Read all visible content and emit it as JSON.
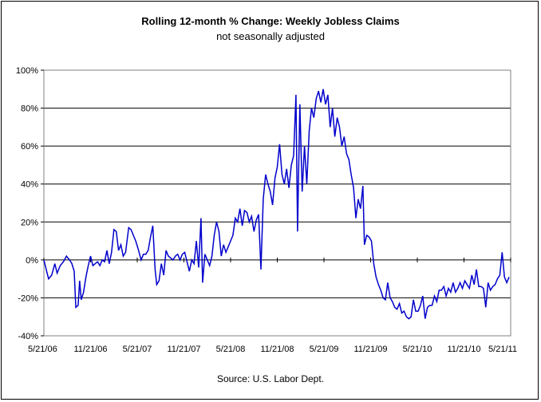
{
  "chart_data": {
    "type": "line",
    "title": "Rolling 12-month %  Change: Weekly Jobless Claims",
    "subtitle": "not seasonally adjusted",
    "source": "Source: U.S. Labor Dept.",
    "xlabel": "",
    "ylabel": "",
    "ylim": [
      -40,
      100
    ],
    "yticks": [
      -40,
      -20,
      0,
      20,
      40,
      60,
      80,
      100
    ],
    "ytick_labels": [
      "-40%",
      "-20%",
      "0%",
      "20%",
      "40%",
      "60%",
      "80%",
      "100%"
    ],
    "xticks": [
      "5/21/06",
      "11/21/06",
      "5/21/07",
      "11/21/07",
      "5/21/08",
      "11/21/08",
      "5/21/09",
      "11/21/09",
      "5/21/10",
      "11/21/10",
      "5/21/11"
    ],
    "grid": "horizontal",
    "line_color": "#0000CC",
    "series": [
      {
        "values": [
          [
            0,
            0
          ],
          [
            0.3,
            -5
          ],
          [
            0.6,
            -10
          ],
          [
            1.0,
            -8
          ],
          [
            1.4,
            -2
          ],
          [
            1.7,
            -7
          ],
          [
            2.1,
            -3
          ],
          [
            2.5,
            -1
          ],
          [
            2.9,
            2
          ],
          [
            3.3,
            0
          ],
          [
            3.6,
            -2
          ],
          [
            3.9,
            -6
          ],
          [
            4.1,
            -25
          ],
          [
            4.4,
            -24
          ],
          [
            4.6,
            -11
          ],
          [
            4.8,
            -21
          ],
          [
            5.1,
            -17
          ],
          [
            5.4,
            -9
          ],
          [
            5.7,
            -3
          ],
          [
            6.0,
            2
          ],
          [
            6.3,
            -3
          ],
          [
            6.6,
            -2
          ],
          [
            6.9,
            -1
          ],
          [
            7.2,
            -3
          ],
          [
            7.5,
            0
          ],
          [
            7.8,
            -1
          ],
          [
            8.1,
            5
          ],
          [
            8.4,
            -2
          ],
          [
            8.7,
            4
          ],
          [
            9.0,
            16
          ],
          [
            9.3,
            15
          ],
          [
            9.6,
            5
          ],
          [
            9.9,
            8
          ],
          [
            10.2,
            2
          ],
          [
            10.5,
            4
          ],
          [
            10.9,
            17
          ],
          [
            11.2,
            16
          ],
          [
            11.5,
            13
          ],
          [
            11.8,
            10
          ],
          [
            12.1,
            6
          ],
          [
            12.5,
            0
          ],
          [
            12.8,
            3
          ],
          [
            13.1,
            3
          ],
          [
            13.4,
            5
          ],
          [
            13.7,
            12
          ],
          [
            14.0,
            18
          ],
          [
            14.3,
            -5
          ],
          [
            14.5,
            -13
          ],
          [
            14.8,
            -11
          ],
          [
            15.1,
            -2
          ],
          [
            15.4,
            -8
          ],
          [
            15.7,
            5
          ],
          [
            16.0,
            2
          ],
          [
            16.3,
            1
          ],
          [
            16.6,
            0
          ],
          [
            16.9,
            2
          ],
          [
            17.2,
            3
          ],
          [
            17.5,
            0
          ],
          [
            17.8,
            3
          ],
          [
            18.1,
            4
          ],
          [
            18.4,
            -1
          ],
          [
            18.7,
            -6
          ],
          [
            19.0,
            0
          ],
          [
            19.3,
            -2
          ],
          [
            19.6,
            10
          ],
          [
            19.9,
            -4
          ],
          [
            20.2,
            22
          ],
          [
            20.4,
            -12
          ],
          [
            20.7,
            3
          ],
          [
            21.0,
            0
          ],
          [
            21.3,
            -3
          ],
          [
            21.6,
            2
          ],
          [
            21.9,
            13
          ],
          [
            22.2,
            20
          ],
          [
            22.5,
            15
          ],
          [
            22.8,
            2
          ],
          [
            23.1,
            8
          ],
          [
            23.4,
            4
          ],
          [
            23.7,
            7
          ],
          [
            24.0,
            10
          ],
          [
            24.3,
            13
          ],
          [
            24.6,
            22
          ],
          [
            24.9,
            20
          ],
          [
            25.2,
            27
          ],
          [
            25.5,
            18
          ],
          [
            25.8,
            26
          ],
          [
            26.1,
            25
          ],
          [
            26.4,
            20
          ],
          [
            26.7,
            23
          ],
          [
            27.0,
            15
          ],
          [
            27.3,
            21
          ],
          [
            27.6,
            24
          ],
          [
            27.9,
            -5
          ],
          [
            28.2,
            32
          ],
          [
            28.5,
            45
          ],
          [
            28.8,
            40
          ],
          [
            29.1,
            36
          ],
          [
            29.4,
            29
          ],
          [
            29.7,
            43
          ],
          [
            30.0,
            49
          ],
          [
            30.3,
            61
          ],
          [
            30.6,
            45
          ],
          [
            30.9,
            40
          ],
          [
            31.2,
            48
          ],
          [
            31.5,
            38
          ],
          [
            31.8,
            50
          ],
          [
            32.1,
            55
          ],
          [
            32.4,
            87
          ],
          [
            32.6,
            15
          ],
          [
            32.9,
            82
          ],
          [
            33.2,
            36
          ],
          [
            33.5,
            60
          ],
          [
            33.8,
            40
          ],
          [
            34.1,
            68
          ],
          [
            34.4,
            80
          ],
          [
            34.7,
            75
          ],
          [
            35.0,
            85
          ],
          [
            35.3,
            89
          ],
          [
            35.6,
            83
          ],
          [
            35.9,
            90
          ],
          [
            36.2,
            82
          ],
          [
            36.5,
            87
          ],
          [
            36.8,
            70
          ],
          [
            37.1,
            80
          ],
          [
            37.4,
            65
          ],
          [
            37.7,
            75
          ],
          [
            38.0,
            70
          ],
          [
            38.3,
            60
          ],
          [
            38.6,
            65
          ],
          [
            38.9,
            56
          ],
          [
            39.2,
            53
          ],
          [
            39.5,
            45
          ],
          [
            39.8,
            38
          ],
          [
            40.1,
            22
          ],
          [
            40.4,
            32
          ],
          [
            40.7,
            27
          ],
          [
            41.0,
            39
          ],
          [
            41.2,
            8
          ],
          [
            41.5,
            13
          ],
          [
            41.8,
            12
          ],
          [
            42.1,
            10
          ],
          [
            42.4,
            -2
          ],
          [
            42.7,
            -9
          ],
          [
            43.0,
            -13
          ],
          [
            43.3,
            -16
          ],
          [
            43.6,
            -20
          ],
          [
            43.9,
            -21
          ],
          [
            44.2,
            -12
          ],
          [
            44.5,
            -20
          ],
          [
            44.8,
            -22
          ],
          [
            45.1,
            -25
          ],
          [
            45.4,
            -26
          ],
          [
            45.7,
            -23
          ],
          [
            46.0,
            -28
          ],
          [
            46.3,
            -27
          ],
          [
            46.6,
            -30
          ],
          [
            46.9,
            -31
          ],
          [
            47.2,
            -30
          ],
          [
            47.5,
            -21
          ],
          [
            47.8,
            -27
          ],
          [
            48.1,
            -27
          ],
          [
            48.4,
            -24
          ],
          [
            48.7,
            -19
          ],
          [
            49.0,
            -31
          ],
          [
            49.3,
            -25
          ],
          [
            49.6,
            -24
          ],
          [
            49.9,
            -24
          ],
          [
            50.2,
            -19
          ],
          [
            50.5,
            -22
          ],
          [
            50.8,
            -16
          ],
          [
            51.1,
            -16
          ],
          [
            51.4,
            -14
          ],
          [
            51.7,
            -19
          ],
          [
            52.0,
            -15
          ],
          [
            52.3,
            -17
          ],
          [
            52.6,
            -12
          ],
          [
            52.9,
            -17
          ],
          [
            53.2,
            -15
          ],
          [
            53.5,
            -12
          ],
          [
            53.8,
            -15
          ],
          [
            54.1,
            -11
          ],
          [
            54.4,
            -13
          ],
          [
            54.7,
            -15
          ],
          [
            55.0,
            -8
          ],
          [
            55.3,
            -13
          ],
          [
            55.6,
            -5
          ],
          [
            55.9,
            -14
          ],
          [
            56.2,
            -14
          ],
          [
            56.5,
            -15
          ],
          [
            56.8,
            -25
          ],
          [
            57.1,
            -12
          ],
          [
            57.4,
            -16
          ],
          [
            57.7,
            -14
          ],
          [
            58.0,
            -13
          ],
          [
            58.3,
            -10
          ],
          [
            58.6,
            -8
          ],
          [
            58.9,
            4
          ],
          [
            59.2,
            -9
          ],
          [
            59.5,
            -12
          ],
          [
            59.8,
            -9
          ]
        ]
      }
    ]
  }
}
